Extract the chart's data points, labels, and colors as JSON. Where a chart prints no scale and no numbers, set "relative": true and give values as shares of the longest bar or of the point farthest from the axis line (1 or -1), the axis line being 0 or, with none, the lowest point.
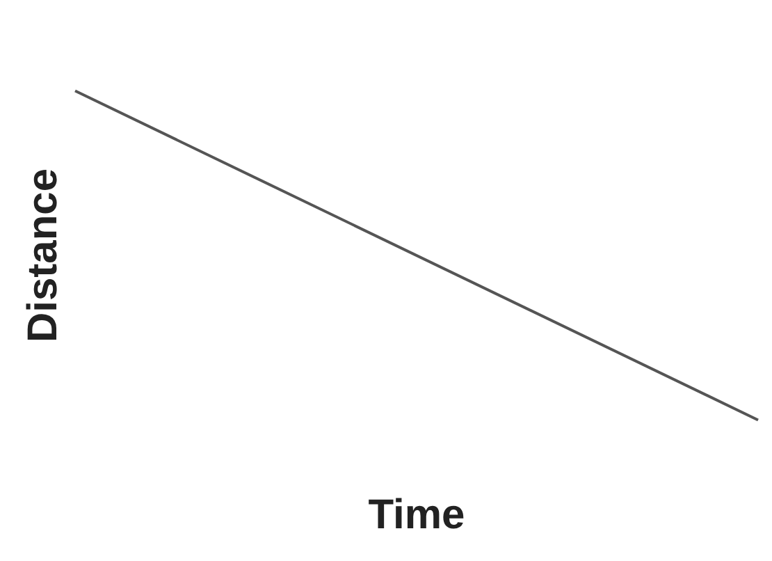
{
  "chart_data": {
    "type": "line",
    "xlabel": "Time",
    "ylabel": "Distance",
    "categories": [
      null,
      null
    ],
    "relative": true,
    "series": [
      {
        "color": "#555555",
        "values": [
          1,
          0
        ]
      }
    ],
    "legend": false,
    "marker": "none",
    "line_style": "solid"
  }
}
